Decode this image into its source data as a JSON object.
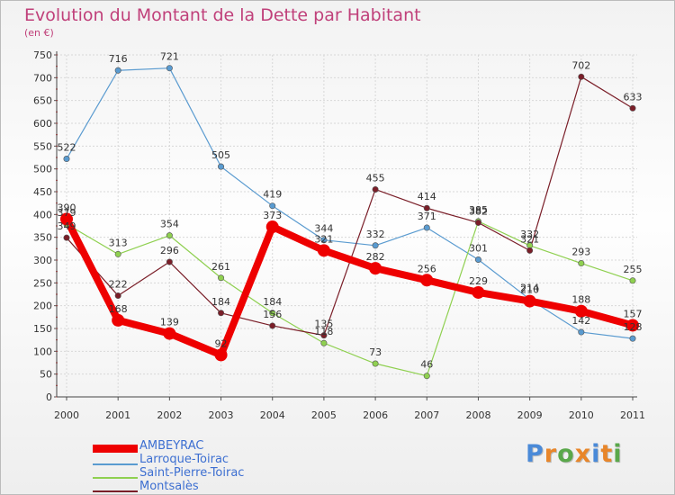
{
  "header": {
    "title": "Evolution du Montant de la Dette par Habitant",
    "subtitle": "(en €)"
  },
  "logo": {
    "text": "Proxiti",
    "letter_colors": [
      "#4a8ad8",
      "#e8862a",
      "#5aa84a",
      "#e8862a",
      "#4a8ad8",
      "#e8862a",
      "#5aa84a"
    ]
  },
  "chart_data": {
    "type": "line",
    "title": "Evolution du Montant de la Dette par Habitant",
    "ylabel": "(en €)",
    "xlabel": "",
    "x": [
      "2000",
      "2001",
      "2002",
      "2003",
      "2004",
      "2005",
      "2006",
      "2007",
      "2008",
      "2009",
      "2010",
      "2011"
    ],
    "ylim": [
      0,
      750
    ],
    "yticks": [
      0,
      50,
      100,
      150,
      200,
      250,
      300,
      350,
      400,
      450,
      500,
      550,
      600,
      650,
      700,
      750
    ],
    "grid": true,
    "legend_position": "bottom-left",
    "series": [
      {
        "name": "AMBEYRAC",
        "color": "#ee0000",
        "style": "thick",
        "values": [
          390,
          168,
          139,
          92,
          373,
          321,
          282,
          256,
          229,
          210,
          188,
          157
        ],
        "labels": [
          "390",
          "168",
          "139",
          "92",
          "373",
          "321",
          "282",
          "256",
          "229",
          "210",
          "188",
          "157"
        ]
      },
      {
        "name": "Larroque-Toirac",
        "color": "#5a9bd0",
        "style": "thin",
        "values": [
          522,
          716,
          721,
          505,
          419,
          344,
          332,
          371,
          301,
          214,
          142,
          128
        ],
        "labels": [
          "522",
          "716",
          "721",
          "505",
          "419",
          "344",
          "332",
          "371",
          "301",
          "214",
          "142",
          "128"
        ]
      },
      {
        "name": "Saint-Pierre-Toirac",
        "color": "#8fd050",
        "style": "thin",
        "values": [
          379,
          313,
          354,
          261,
          184,
          118,
          73,
          46,
          385,
          332,
          293,
          255
        ],
        "labels": [
          "379",
          "313",
          "354",
          "261",
          "184",
          "118",
          "73",
          "46",
          "385",
          "332",
          "293",
          "255"
        ]
      },
      {
        "name": "Montsalès",
        "color": "#7a1e28",
        "style": "thin",
        "values": [
          349,
          222,
          296,
          184,
          156,
          135,
          455,
          414,
          382,
          321,
          702,
          633
        ],
        "labels": [
          "349",
          "222",
          "296",
          "184",
          "156",
          "135",
          "455",
          "414",
          "382",
          "321",
          "702",
          "633"
        ]
      }
    ]
  }
}
